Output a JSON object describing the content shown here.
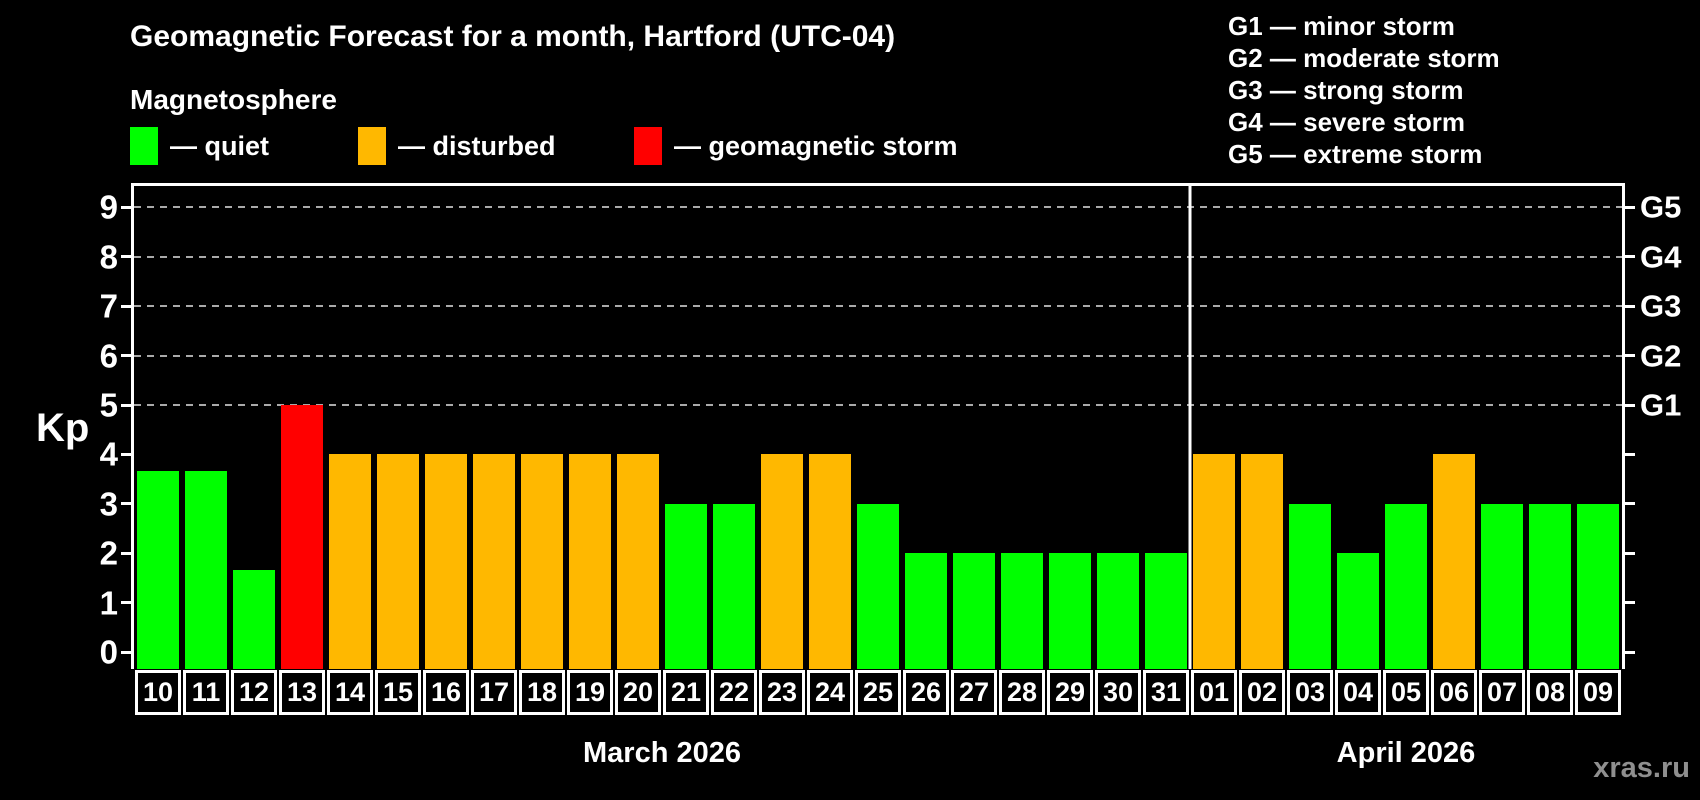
{
  "header": {
    "title": "Geomagnetic Forecast for a month, Hartford (UTC-04)",
    "subtitle": "Magnetosphere"
  },
  "legend": {
    "items": [
      {
        "key": "quiet",
        "label": "— quiet",
        "color": "#00ff00"
      },
      {
        "key": "disturbed",
        "label": "— disturbed",
        "color": "#ffb800"
      },
      {
        "key": "storm",
        "label": "— geomagnetic storm",
        "color": "#ff0000"
      }
    ]
  },
  "g_scale_legend": [
    "G1 — minor storm",
    "G2 — moderate storm",
    "G3 — strong storm",
    "G4 — severe storm",
    "G5 — extreme storm"
  ],
  "watermark": "xras.ru",
  "colors": {
    "quiet": "#00ff00",
    "disturbed": "#ffb800",
    "storm": "#ff0000",
    "background": "#000000",
    "grid": "#aaaaaa",
    "axis": "#ffffff",
    "watermark": "#8f8f8f"
  },
  "chart_data": {
    "type": "bar",
    "title": "Geomagnetic Forecast for a month, Hartford (UTC-04)",
    "ylabel": "Kp",
    "ylim": [
      0,
      9.45
    ],
    "y_ticks": [
      0,
      1,
      2,
      3,
      4,
      5,
      6,
      7,
      8,
      9
    ],
    "gridlines_at": [
      5,
      6,
      7,
      8,
      9
    ],
    "grid": "horizontal-dashed",
    "legend_position": "top-left",
    "right_axis_labels": [
      {
        "value": 5,
        "label": "G1"
      },
      {
        "value": 6,
        "label": "G2"
      },
      {
        "value": 7,
        "label": "G3"
      },
      {
        "value": 8,
        "label": "G4"
      },
      {
        "value": 9,
        "label": "G5"
      }
    ],
    "months": [
      {
        "label": "March 2026",
        "days": [
          {
            "day": "10",
            "kp": 3.67,
            "status": "quiet"
          },
          {
            "day": "11",
            "kp": 3.67,
            "status": "quiet"
          },
          {
            "day": "12",
            "kp": 1.67,
            "status": "quiet"
          },
          {
            "day": "13",
            "kp": 5,
            "status": "storm"
          },
          {
            "day": "14",
            "kp": 4,
            "status": "disturbed"
          },
          {
            "day": "15",
            "kp": 4,
            "status": "disturbed"
          },
          {
            "day": "16",
            "kp": 4,
            "status": "disturbed"
          },
          {
            "day": "17",
            "kp": 4,
            "status": "disturbed"
          },
          {
            "day": "18",
            "kp": 4,
            "status": "disturbed"
          },
          {
            "day": "19",
            "kp": 4,
            "status": "disturbed"
          },
          {
            "day": "20",
            "kp": 4,
            "status": "disturbed"
          },
          {
            "day": "21",
            "kp": 3,
            "status": "quiet"
          },
          {
            "day": "22",
            "kp": 3,
            "status": "quiet"
          },
          {
            "day": "23",
            "kp": 4,
            "status": "disturbed"
          },
          {
            "day": "24",
            "kp": 4,
            "status": "disturbed"
          },
          {
            "day": "25",
            "kp": 3,
            "status": "quiet"
          },
          {
            "day": "26",
            "kp": 2,
            "status": "quiet"
          },
          {
            "day": "27",
            "kp": 2,
            "status": "quiet"
          },
          {
            "day": "28",
            "kp": 2,
            "status": "quiet"
          },
          {
            "day": "29",
            "kp": 2,
            "status": "quiet"
          },
          {
            "day": "30",
            "kp": 2,
            "status": "quiet"
          },
          {
            "day": "31",
            "kp": 2,
            "status": "quiet"
          }
        ]
      },
      {
        "label": "April 2026",
        "days": [
          {
            "day": "01",
            "kp": 4,
            "status": "disturbed"
          },
          {
            "day": "02",
            "kp": 4,
            "status": "disturbed"
          },
          {
            "day": "03",
            "kp": 3,
            "status": "quiet"
          },
          {
            "day": "04",
            "kp": 2,
            "status": "quiet"
          },
          {
            "day": "05",
            "kp": 3,
            "status": "quiet"
          },
          {
            "day": "06",
            "kp": 4,
            "status": "disturbed"
          },
          {
            "day": "07",
            "kp": 3,
            "status": "quiet"
          },
          {
            "day": "08",
            "kp": 3,
            "status": "quiet"
          },
          {
            "day": "09",
            "kp": 3,
            "status": "quiet"
          }
        ]
      }
    ]
  }
}
